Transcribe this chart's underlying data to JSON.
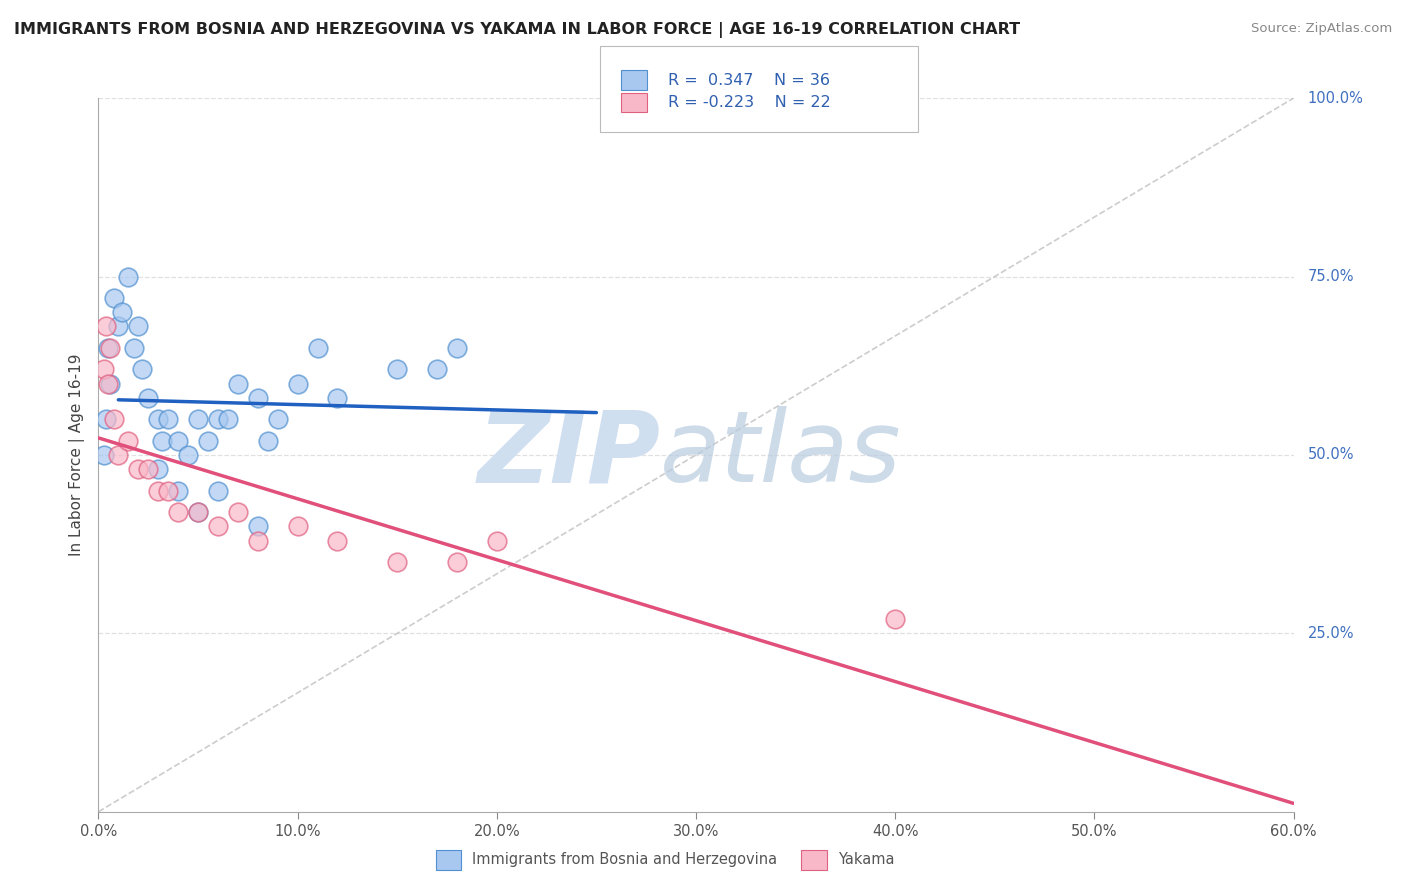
{
  "title": "IMMIGRANTS FROM BOSNIA AND HERZEGOVINA VS YAKAMA IN LABOR FORCE | AGE 16-19 CORRELATION CHART",
  "source": "Source: ZipAtlas.com",
  "ylabel": "In Labor Force | Age 16-19",
  "xlim": [
    0.0,
    60.0
  ],
  "ylim": [
    0.0,
    100.0
  ],
  "xticks": [
    0.0,
    10.0,
    20.0,
    30.0,
    40.0,
    50.0,
    60.0
  ],
  "yticks_right": [
    25.0,
    50.0,
    75.0,
    100.0
  ],
  "xticklabels": [
    "0.0%",
    "10.0%",
    "20.0%",
    "30.0%",
    "40.0%",
    "50.0%",
    "60.0%"
  ],
  "yticklabels_right": [
    "25.0%",
    "50.0%",
    "75.0%",
    "100.0%"
  ],
  "bosnia_color": "#a8c8f0",
  "yakama_color": "#f8b8c8",
  "bosnia_edge_color": "#5090d0",
  "yakama_edge_color": "#e06080",
  "bosnia_line_color": "#2060c0",
  "yakama_line_color": "#e0507a",
  "ref_line_color": "#c0c0c0",
  "grid_color": "#e0e0e0",
  "r_bosnia": 0.347,
  "n_bosnia": 36,
  "r_yakama": -0.223,
  "n_yakama": 22,
  "watermark_zip_color": "#d0dff0",
  "watermark_atlas_color": "#b8cce0",
  "bosnia_scatter_x": [
    0.3,
    0.4,
    0.5,
    0.6,
    0.8,
    1.0,
    1.2,
    1.5,
    1.8,
    2.0,
    2.2,
    2.5,
    3.0,
    3.2,
    3.5,
    4.0,
    4.5,
    5.0,
    5.5,
    6.0,
    6.5,
    7.0,
    8.0,
    8.5,
    9.0,
    10.0,
    11.0,
    12.0,
    15.0,
    17.0,
    18.0,
    3.0,
    4.0,
    5.0,
    6.0,
    8.0
  ],
  "bosnia_scatter_y": [
    50,
    55,
    65,
    60,
    72,
    68,
    70,
    75,
    65,
    68,
    62,
    58,
    55,
    52,
    55,
    52,
    50,
    55,
    52,
    55,
    55,
    60,
    58,
    52,
    55,
    60,
    65,
    58,
    62,
    62,
    65,
    48,
    45,
    42,
    45,
    40
  ],
  "yakama_scatter_x": [
    0.3,
    0.5,
    0.6,
    0.8,
    1.0,
    1.5,
    2.0,
    2.5,
    3.0,
    3.5,
    4.0,
    5.0,
    6.0,
    7.0,
    8.0,
    10.0,
    12.0,
    15.0,
    18.0,
    20.0,
    40.0,
    0.4
  ],
  "yakama_scatter_y": [
    62,
    60,
    65,
    55,
    50,
    52,
    48,
    48,
    45,
    45,
    42,
    42,
    40,
    42,
    38,
    40,
    38,
    35,
    35,
    38,
    27,
    68
  ],
  "background_color": "#ffffff"
}
